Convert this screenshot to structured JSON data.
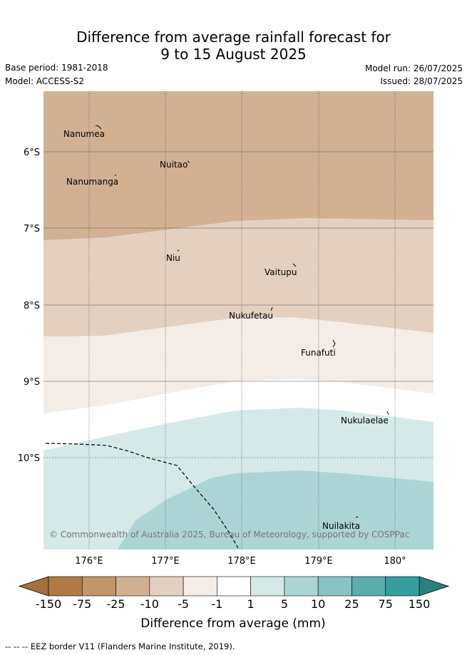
{
  "title_line1": "Difference from average rainfall forecast for",
  "title_line2": "9 to 15 August 2025",
  "base_period": "Base period: 1981-2018",
  "model": "Model: ACCESS-S2",
  "model_run": "Model run: 26/07/2025",
  "issued": "Issued: 28/07/2025",
  "copyright": "© Commonwealth of Australia 2025, Bureau of Meteorology, supported by COSPPac",
  "lat_labels": [
    "6°S",
    "7°S",
    "8°S",
    "9°S",
    "10°S"
  ],
  "lon_labels": [
    "176°E",
    "177°E",
    "178°E",
    "179°E",
    "180°"
  ],
  "places": [
    "Nanumea",
    "Nuitao",
    "Nanumanga",
    "Niu",
    "Vaitupu",
    "Nukufetau",
    "Funafuti",
    "Nukulaelae",
    "Nuilakita"
  ],
  "colorbar": {
    "ticks": [
      "-150",
      "-75",
      "-25",
      "-10",
      "-5",
      "-1",
      "1",
      "5",
      "10",
      "25",
      "75",
      "150"
    ],
    "colors": [
      "#a8703a",
      "#b07a44",
      "#c2956a",
      "#d2b193",
      "#e3d0c0",
      "#f4ece7",
      "#ffffff",
      "#d5e9e8",
      "#abd5d5",
      "#88c2c2",
      "#5aacac",
      "#359e9e",
      "#2b7f7f"
    ],
    "label": "Difference from average (mm)"
  },
  "footer": "--  --  -- EEZ border V11 (Flanders Marine Institute, 2019)."
}
